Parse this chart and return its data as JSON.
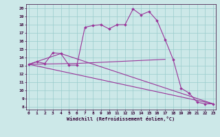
{
  "xlabel": "Windchill (Refroidissement éolien,°C)",
  "background_color": "#cce8e8",
  "grid_color": "#99cccc",
  "line_color": "#993399",
  "x_ticks": [
    0,
    1,
    2,
    3,
    4,
    5,
    6,
    7,
    8,
    9,
    10,
    11,
    12,
    13,
    14,
    15,
    16,
    17,
    18,
    19,
    20,
    21,
    22,
    23
  ],
  "y_ticks": [
    8,
    9,
    10,
    11,
    12,
    13,
    14,
    15,
    16,
    17,
    18,
    19,
    20
  ],
  "xlim": [
    -0.3,
    23.3
  ],
  "ylim": [
    7.7,
    20.5
  ],
  "line1_x": [
    0,
    1,
    2,
    3,
    4,
    5,
    6,
    7,
    8,
    9,
    10,
    11,
    12,
    13,
    14,
    15,
    16,
    17,
    18,
    19,
    20,
    21,
    22,
    23
  ],
  "line1_y": [
    13.2,
    13.5,
    13.3,
    14.6,
    14.5,
    13.1,
    13.1,
    17.7,
    17.9,
    18.0,
    17.5,
    18.0,
    18.0,
    19.9,
    19.2,
    19.6,
    18.5,
    16.2,
    13.8,
    10.3,
    9.7,
    8.6,
    8.4,
    8.4
  ],
  "line2_x": [
    0,
    6,
    17
  ],
  "line2_y": [
    13.2,
    13.3,
    13.8
  ],
  "line3_x": [
    0,
    23
  ],
  "line3_y": [
    13.2,
    8.4
  ],
  "line4_x": [
    0,
    4,
    23
  ],
  "line4_y": [
    13.2,
    14.5,
    8.4
  ]
}
